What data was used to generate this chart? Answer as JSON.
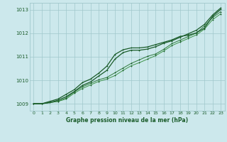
{
  "title": "Graphe pression niveau de la mer (hPa)",
  "background_color": "#cce8ec",
  "grid_color": "#a0c8cc",
  "line_color_dark": "#1a5c2a",
  "line_color_mid": "#2d7a3a",
  "line_color_light": "#3d9448",
  "xlim": [
    -0.5,
    23.5
  ],
  "ylim": [
    1008.7,
    1013.3
  ],
  "yticks": [
    1009,
    1010,
    1011,
    1012,
    1013
  ],
  "xticks": [
    0,
    1,
    2,
    3,
    4,
    5,
    6,
    7,
    8,
    9,
    10,
    11,
    12,
    13,
    14,
    15,
    16,
    17,
    18,
    19,
    20,
    21,
    22,
    23
  ],
  "series1": [
    1009.0,
    1009.0,
    1009.05,
    1009.1,
    1009.2,
    1009.45,
    1009.65,
    1009.8,
    1009.95,
    1010.05,
    1010.2,
    1010.42,
    1010.62,
    1010.75,
    1010.9,
    1011.05,
    1011.25,
    1011.48,
    1011.63,
    1011.78,
    1011.93,
    1012.18,
    1012.58,
    1012.83
  ],
  "series2": [
    1009.0,
    1009.0,
    1009.05,
    1009.1,
    1009.25,
    1009.5,
    1009.72,
    1009.87,
    1010.02,
    1010.12,
    1010.32,
    1010.52,
    1010.72,
    1010.87,
    1011.02,
    1011.12,
    1011.32,
    1011.56,
    1011.71,
    1011.86,
    1012.01,
    1012.31,
    1012.67,
    1012.92
  ],
  "series3": [
    1009.0,
    1009.0,
    1009.1,
    1009.2,
    1009.4,
    1009.6,
    1009.9,
    1010.05,
    1010.3,
    1010.6,
    1011.1,
    1011.3,
    1011.38,
    1011.38,
    1011.42,
    1011.52,
    1011.62,
    1011.72,
    1011.87,
    1011.92,
    1012.02,
    1012.22,
    1012.72,
    1013.02
  ],
  "series4": [
    1009.0,
    1009.0,
    1009.05,
    1009.15,
    1009.3,
    1009.52,
    1009.78,
    1009.93,
    1010.18,
    1010.42,
    1010.9,
    1011.18,
    1011.28,
    1011.28,
    1011.33,
    1011.43,
    1011.58,
    1011.68,
    1011.83,
    1011.98,
    1012.13,
    1012.38,
    1012.78,
    1013.08
  ]
}
